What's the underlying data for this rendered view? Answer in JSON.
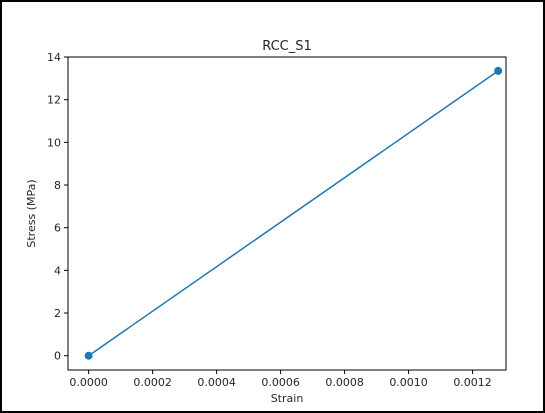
{
  "chart_data": {
    "type": "line",
    "title": "RCC_S1",
    "xlabel": "Strain",
    "ylabel": "Stress (MPa)",
    "xlim": [
      -6.45e-05,
      0.0013045
    ],
    "ylim": [
      -0.67,
      14.0
    ],
    "x_ticks": [
      0.0,
      0.0002,
      0.0004,
      0.0006,
      0.0008,
      0.001,
      0.0012
    ],
    "x_tick_labels": [
      "0.0000",
      "0.0002",
      "0.0004",
      "0.0006",
      "0.0008",
      "0.0010",
      "0.0012"
    ],
    "y_ticks": [
      0,
      2,
      4,
      6,
      8,
      10,
      12,
      14
    ],
    "y_tick_labels": [
      "0",
      "2",
      "4",
      "6",
      "8",
      "10",
      "12",
      "14"
    ],
    "grid": false,
    "series": [
      {
        "x": [
          0.0,
          0.00128
        ],
        "y": [
          0.0,
          13.35
        ],
        "color": "#1f77b4",
        "marker": "circle"
      }
    ]
  }
}
